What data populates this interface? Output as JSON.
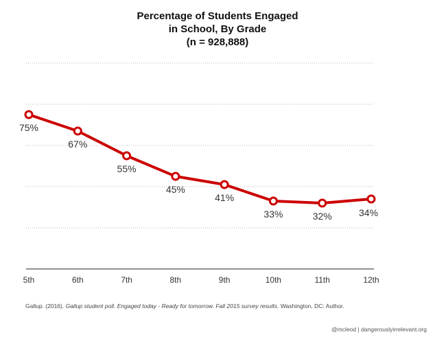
{
  "chart_data": {
    "type": "line",
    "title_lines": [
      "Percentage of Students Engaged",
      "in School, By Grade",
      "(n = 928,888)"
    ],
    "categories": [
      "5th",
      "6th",
      "7th",
      "8th",
      "9th",
      "10th",
      "11th",
      "12th"
    ],
    "values": [
      75,
      67,
      55,
      45,
      41,
      33,
      32,
      34
    ],
    "data_labels": [
      "75%",
      "67%",
      "55%",
      "45%",
      "41%",
      "33%",
      "32%",
      "34%"
    ],
    "series_color": "#cc0000",
    "xlabel": "",
    "ylabel": "",
    "ylim": [
      0,
      100
    ],
    "grid": true,
    "legend": "none"
  },
  "citation": {
    "prefix": "Gallup. (2016). ",
    "title": "Gallup student poll. Engaged today - Ready for tomorrow. Fall 2015 survey results.",
    "suffix": " Washington, DC: Author."
  },
  "credit": "@mcleod | dangerouslyirrelevant.org"
}
